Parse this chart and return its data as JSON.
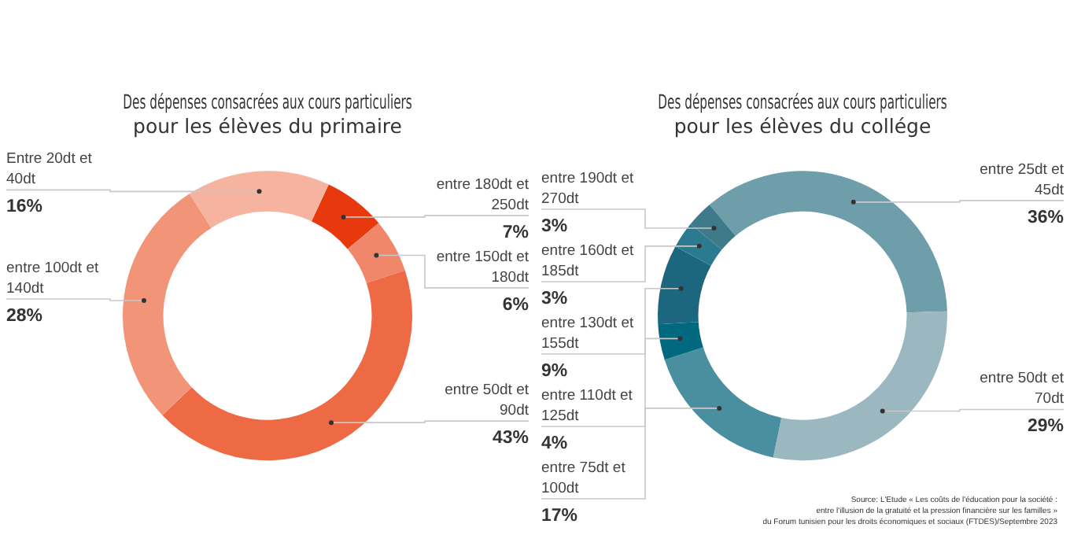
{
  "chart_data": [
    {
      "type": "donut",
      "title": "Des dépenses consacrées aux cours particuliers\npour les élèves du primaire",
      "categories": [
        "entre 180dt et 250dt",
        "entre 150dt et 180dt",
        "entre 50dt et 90dt",
        "entre 100dt et 140dt",
        "Entre 20dt et 40dt"
      ],
      "values": [
        7,
        6,
        43,
        28,
        16
      ],
      "value_labels": [
        "7%",
        "6%",
        "43%",
        "28%",
        "16%"
      ],
      "colors": [
        "#e8380d",
        "#f0876a",
        "#ee6a45",
        "#f29478",
        "#f6b3a0"
      ]
    },
    {
      "type": "donut",
      "title": "Des dépenses consacrées aux cours particuliers\npour les élèves du collége",
      "categories": [
        "entre 25dt et 45dt",
        "entre 50dt et 70dt",
        "entre 75dt et 100dt",
        "entre 110dt et 125dt",
        "entre 130dt et 155dt",
        "entre 160dt et 185dt",
        "entre 190dt et 270dt"
      ],
      "values": [
        36,
        29,
        17,
        4,
        9,
        3,
        3
      ],
      "value_labels": [
        "36%",
        "29%",
        "17%",
        "4%",
        "9%",
        "3%",
        "3%"
      ],
      "colors": [
        "#6f9eab",
        "#9bb8c0",
        "#4a8fa0",
        "#00687f",
        "#1c6680",
        "#2a7b8f",
        "#3f7a8a"
      ],
      "annotations": [
        "Source: L'Etude « Les coûts de l'éducation pour la société :\nentre l'illusion de la gratuité et la pression financière sur les familles »\ndu Forum tunisien pour les droits économiques et sociaux (FTDES)/Septembre 2023"
      ]
    }
  ]
}
